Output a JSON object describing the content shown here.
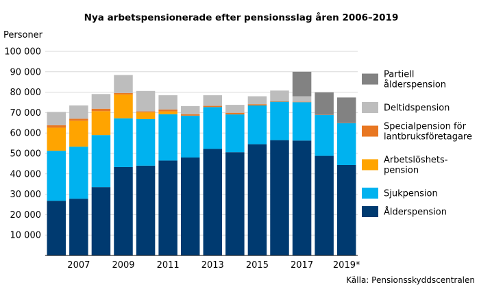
{
  "chart_data": {
    "type": "bar",
    "stacked": true,
    "title": "Nya arbetspensionerade efter pensionsslag åren 2006–2019",
    "ylabel": "Personer",
    "source": "Källa: Pensionsskyddscentralen",
    "ylim": [
      0,
      100000
    ],
    "yticks": [
      10000,
      20000,
      30000,
      40000,
      50000,
      60000,
      70000,
      80000,
      90000,
      100000
    ],
    "ytick_labels": [
      "10 000",
      "20 000",
      "30 000",
      "40 000",
      "50 000",
      "60 000",
      "70 000",
      "80 000",
      "90 000",
      "100 000"
    ],
    "categories": [
      "2006",
      "2007",
      "2008",
      "2009",
      "2010",
      "2011",
      "2012",
      "2013",
      "2014",
      "2015",
      "2016",
      "2017",
      "2018",
      "2019*"
    ],
    "xtick_labels": [
      "",
      "2007",
      "",
      "2009",
      "",
      "2011",
      "",
      "2013",
      "",
      "2015",
      "",
      "2017",
      "",
      "2019*"
    ],
    "grid": "horizontal",
    "legend_position": "right",
    "series": [
      {
        "name": "Ålderspension",
        "color": "#003a70",
        "values": [
          26800,
          27800,
          33500,
          43300,
          44000,
          46500,
          48000,
          52200,
          50600,
          54500,
          56500,
          56300,
          48800,
          44300
        ]
      },
      {
        "name": "Sjukpension",
        "color": "#00b2ef",
        "values": [
          24500,
          25500,
          25500,
          23900,
          22800,
          22700,
          20500,
          20500,
          18500,
          19000,
          18800,
          18800,
          20000,
          20500
        ]
      },
      {
        "name": "Arbetslöshetspension",
        "color": "#ffa400",
        "values": [
          11300,
          12700,
          11700,
          11700,
          3300,
          1400,
          0,
          0,
          0,
          0,
          0,
          0,
          0,
          0
        ]
      },
      {
        "name": "Specialpension för lantbruksföretagare",
        "color": "#e87722",
        "values": [
          1200,
          1000,
          1200,
          700,
          500,
          900,
          700,
          600,
          800,
          600,
          300,
          200,
          100,
          100
        ]
      },
      {
        "name": "Deltidspension",
        "color": "#bdbdbd",
        "values": [
          6500,
          6500,
          7200,
          8800,
          10000,
          7000,
          4000,
          5200,
          3900,
          3900,
          5200,
          2700,
          0,
          0
        ]
      },
      {
        "name": "Partiell ålderspension",
        "color": "#828282",
        "values": [
          0,
          0,
          0,
          0,
          0,
          0,
          0,
          0,
          0,
          0,
          0,
          12000,
          11000,
          12500
        ]
      }
    ],
    "legend": [
      {
        "label_lines": [
          "Partiell",
          "ålderspension"
        ],
        "color": "#828282"
      },
      {
        "label_lines": [
          "Deltidspension"
        ],
        "color": "#bdbdbd"
      },
      {
        "label_lines": [
          "Specialpension för",
          "lantbruksföretagare"
        ],
        "color": "#e87722"
      },
      {
        "label_lines": [
          "Arbetslöshets-",
          "pension"
        ],
        "color": "#ffa400"
      },
      {
        "label_lines": [
          "Sjukpension"
        ],
        "color": "#00b2ef"
      },
      {
        "label_lines": [
          "Ålderspension"
        ],
        "color": "#003a70"
      }
    ]
  }
}
